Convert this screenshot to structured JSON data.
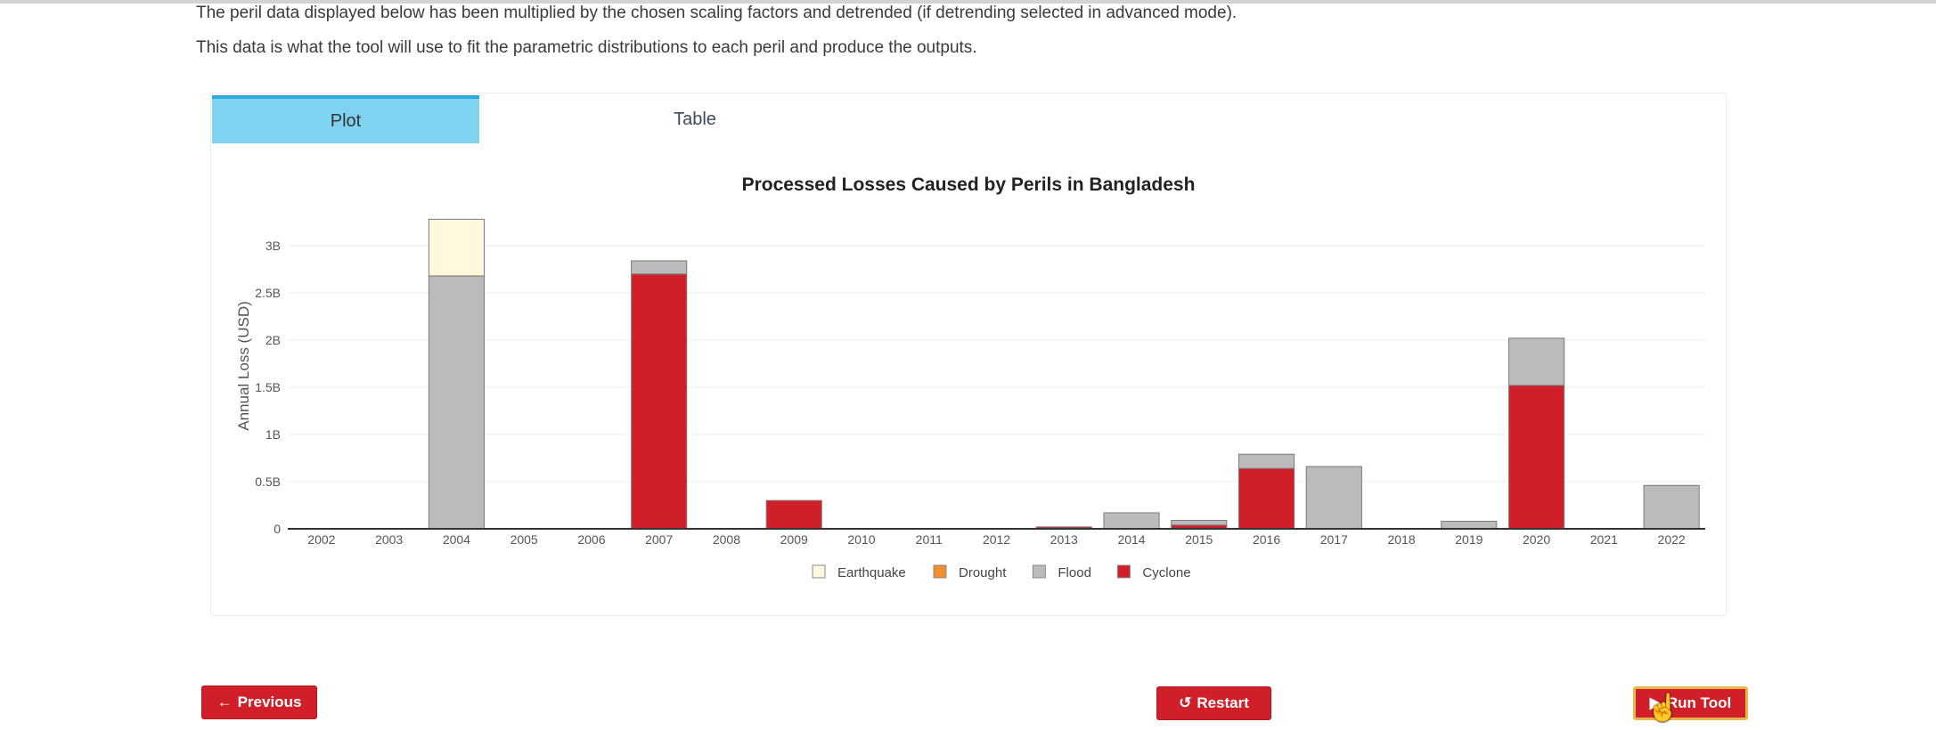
{
  "intro": {
    "line1": "The peril data displayed below has been multiplied by the chosen scaling factors and detrended (if detrending selected in advanced mode).",
    "line2": "This data is what the tool will use to fit the parametric distributions to each peril and produce the outputs."
  },
  "tabs": [
    {
      "label": "Plot",
      "active": true
    },
    {
      "label": "Table",
      "active": false
    }
  ],
  "buttons": {
    "previous": "Previous",
    "previous_icon": "arrow-left-icon",
    "restart": "Restart",
    "restart_icon": "rotate-left-icon",
    "run": "Run Tool",
    "run_icon": "play-icon"
  },
  "colors": {
    "accent_red": "#d11f2a",
    "tab_active": "#7fd3f0",
    "earthquake": "#fff8dc",
    "drought": "#f28e2b",
    "flood": "#bbbbbb",
    "cyclone": "#d11f2a"
  },
  "chart_data": {
    "type": "bar",
    "stacked": true,
    "title": "Processed Losses Caused by Perils in Bangladesh",
    "ylabel": "Annual Loss (USD)",
    "xlabel": "",
    "ylim": [
      0,
      3.2
    ],
    "yticks": [
      0,
      0.5,
      1,
      1.5,
      2,
      2.5,
      3
    ],
    "ytick_labels": [
      "0",
      "0.5B",
      "1B",
      "1.5B",
      "2B",
      "2.5B",
      "3B"
    ],
    "grid": true,
    "legend_placement": "bottom-center",
    "categories": [
      "2002",
      "2003",
      "2004",
      "2005",
      "2006",
      "2007",
      "2008",
      "2009",
      "2010",
      "2011",
      "2012",
      "2013",
      "2014",
      "2015",
      "2016",
      "2017",
      "2018",
      "2019",
      "2020",
      "2021",
      "2022"
    ],
    "series": [
      {
        "name": "Cyclone",
        "color": "#d11f2a",
        "values": [
          0,
          0,
          0,
          0,
          0,
          2.7,
          0,
          0.3,
          0,
          0,
          0,
          0.02,
          0,
          0.04,
          0.64,
          0,
          0,
          0,
          1.52,
          0,
          0
        ]
      },
      {
        "name": "Flood",
        "color": "#bbbbbb",
        "values": [
          0,
          0,
          2.68,
          0,
          0,
          0.14,
          0,
          0,
          0,
          0,
          0,
          0,
          0.17,
          0.05,
          0.15,
          0.66,
          0,
          0.08,
          0.5,
          0,
          0.46
        ]
      },
      {
        "name": "Drought",
        "color": "#f28e2b",
        "values": [
          0,
          0,
          0,
          0,
          0,
          0,
          0,
          0,
          0,
          0,
          0,
          0,
          0,
          0,
          0,
          0,
          0,
          0,
          0,
          0,
          0
        ]
      },
      {
        "name": "Earthquake",
        "color": "#fff8dc",
        "values": [
          0,
          0,
          0.6,
          0,
          0,
          0,
          0,
          0,
          0,
          0,
          0,
          0,
          0,
          0,
          0,
          0,
          0,
          0,
          0,
          0,
          0
        ]
      }
    ],
    "legend_order": [
      "Earthquake",
      "Drought",
      "Flood",
      "Cyclone"
    ]
  }
}
